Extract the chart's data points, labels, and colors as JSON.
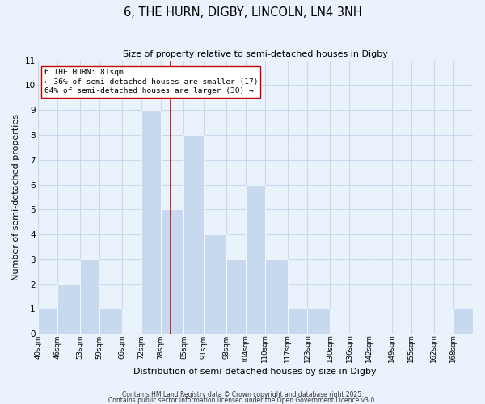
{
  "title": "6, THE HURN, DIGBY, LINCOLN, LN4 3NH",
  "subtitle": "Size of property relative to semi-detached houses in Digby",
  "xlabel": "Distribution of semi-detached houses by size in Digby",
  "ylabel": "Number of semi-detached properties",
  "bin_labels": [
    "40sqm",
    "46sqm",
    "53sqm",
    "59sqm",
    "66sqm",
    "72sqm",
    "78sqm",
    "85sqm",
    "91sqm",
    "98sqm",
    "104sqm",
    "110sqm",
    "117sqm",
    "123sqm",
    "130sqm",
    "136sqm",
    "142sqm",
    "149sqm",
    "155sqm",
    "162sqm",
    "168sqm"
  ],
  "bin_edges": [
    40,
    46,
    53,
    59,
    66,
    72,
    78,
    85,
    91,
    98,
    104,
    110,
    117,
    123,
    130,
    136,
    142,
    149,
    155,
    162,
    168,
    174
  ],
  "bar_heights": [
    1,
    2,
    3,
    1,
    0,
    9,
    5,
    8,
    4,
    3,
    6,
    3,
    1,
    1,
    0,
    0,
    0,
    0,
    0,
    0,
    1
  ],
  "bar_color": "#c6d9ee",
  "bar_edgecolor": "#ffffff",
  "grid_color": "#c6d9ee",
  "bg_color": "#eaf2fb",
  "vline_x": 81,
  "vline_color": "#cc0000",
  "ylim": [
    0,
    11
  ],
  "yticks": [
    0,
    1,
    2,
    3,
    4,
    5,
    6,
    7,
    8,
    9,
    10,
    11
  ],
  "annotation_title": "6 THE HURN: 81sqm",
  "annotation_line1": "← 36% of semi-detached houses are smaller (17)",
  "annotation_line2": "64% of semi-detached houses are larger (30) →",
  "footer1": "Contains HM Land Registry data © Crown copyright and database right 2025.",
  "footer2": "Contains public sector information licensed under the Open Government Licence v3.0."
}
